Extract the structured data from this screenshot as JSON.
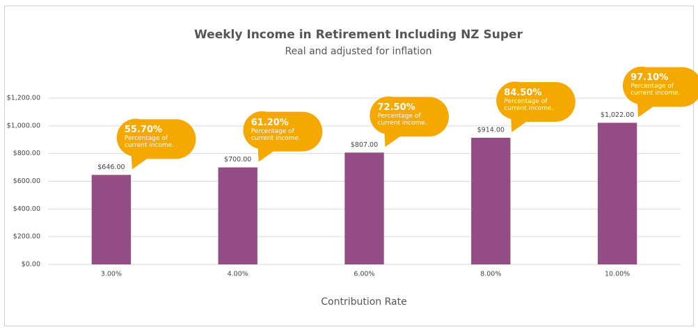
{
  "chart_data": {
    "type": "bar",
    "title": "Weekly Income in Retirement Including NZ Super",
    "subtitle": "Real and adjusted for inflation",
    "x_label": "Contribution Rate",
    "categories": [
      "3.00%",
      "4.00%",
      "6.00%",
      "8.00%",
      "10.00%"
    ],
    "values": [
      646,
      700,
      807,
      914,
      1022
    ],
    "value_labels": [
      "$646.00",
      "$700.00",
      "$807.00",
      "$914.00",
      "$1,022.00"
    ],
    "color": "#944c84",
    "ylim": [
      0,
      1200
    ],
    "yticks": [
      {
        "value": 0,
        "label": "$0.00"
      },
      {
        "value": 200,
        "label": "$200.00"
      },
      {
        "value": 400,
        "label": "$400.00"
      },
      {
        "value": 600,
        "label": "$600.00"
      },
      {
        "value": 800,
        "label": "$800.00"
      },
      {
        "value": 1000,
        "label": "$1,000.00"
      },
      {
        "value": 1200,
        "label": "$1,200.00"
      }
    ],
    "grid": true,
    "annotations": [
      {
        "title": "55.70%",
        "text": "Percentage of current income."
      },
      {
        "title": "61.20%",
        "text": "Percentage of current income."
      },
      {
        "title": "72.50%",
        "text": "Percentage of current income."
      },
      {
        "title": "84.50%",
        "text": "Percentage of current income."
      },
      {
        "title": "97.10%",
        "text": "Percentage of current income."
      }
    ],
    "annotation_color": "#f5a800"
  }
}
